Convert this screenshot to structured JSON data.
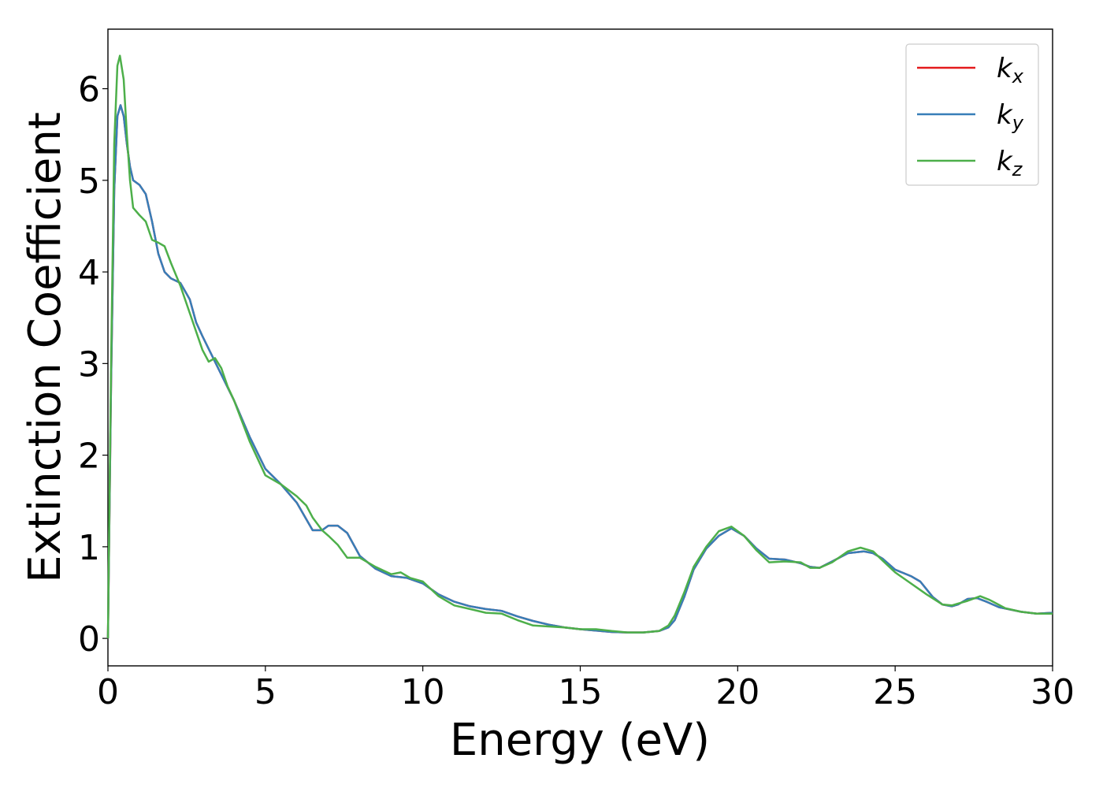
{
  "chart_data": {
    "type": "line",
    "title": "",
    "xlabel": "Energy (eV)",
    "ylabel": "Extinction Coefficient",
    "xlim": [
      0,
      30
    ],
    "ylim": [
      -0.3,
      6.65
    ],
    "xticks": [
      0,
      5,
      10,
      15,
      20,
      25,
      30
    ],
    "xtick_labels": [
      "0",
      "5",
      "10",
      "15",
      "20",
      "25",
      "30"
    ],
    "yticks": [
      0,
      1,
      2,
      3,
      4,
      5,
      6
    ],
    "ytick_labels": [
      "0",
      "1",
      "2",
      "3",
      "4",
      "5",
      "6"
    ],
    "grid": false,
    "legend_position": "top-right",
    "series": [
      {
        "name": "kx",
        "legend_base": "k",
        "legend_sub": "x",
        "color": "#e41a1c",
        "points": [
          [
            0,
            0
          ],
          [
            0.1,
            2.8
          ],
          [
            0.2,
            4.9
          ],
          [
            0.3,
            5.7
          ],
          [
            0.4,
            5.82
          ],
          [
            0.5,
            5.7
          ],
          [
            0.6,
            5.4
          ],
          [
            0.7,
            5.15
          ],
          [
            0.8,
            5.0
          ],
          [
            1.0,
            4.95
          ],
          [
            1.2,
            4.85
          ],
          [
            1.4,
            4.55
          ],
          [
            1.6,
            4.2
          ],
          [
            1.8,
            4.0
          ],
          [
            2.0,
            3.93
          ],
          [
            2.3,
            3.88
          ],
          [
            2.6,
            3.7
          ],
          [
            2.8,
            3.45
          ],
          [
            3.0,
            3.3
          ],
          [
            3.5,
            2.95
          ],
          [
            4.0,
            2.6
          ],
          [
            4.5,
            2.2
          ],
          [
            5.0,
            1.85
          ],
          [
            5.5,
            1.68
          ],
          [
            6.0,
            1.48
          ],
          [
            6.3,
            1.3
          ],
          [
            6.5,
            1.18
          ],
          [
            6.8,
            1.18
          ],
          [
            7.0,
            1.23
          ],
          [
            7.3,
            1.23
          ],
          [
            7.6,
            1.15
          ],
          [
            8.0,
            0.9
          ],
          [
            8.5,
            0.76
          ],
          [
            9.0,
            0.68
          ],
          [
            9.5,
            0.66
          ],
          [
            10.0,
            0.6
          ],
          [
            10.5,
            0.48
          ],
          [
            11.0,
            0.4
          ],
          [
            11.5,
            0.35
          ],
          [
            12.0,
            0.32
          ],
          [
            12.5,
            0.3
          ],
          [
            13.0,
            0.24
          ],
          [
            13.5,
            0.19
          ],
          [
            14.0,
            0.15
          ],
          [
            14.5,
            0.12
          ],
          [
            15.0,
            0.1
          ],
          [
            15.5,
            0.085
          ],
          [
            16.0,
            0.07
          ],
          [
            16.5,
            0.065
          ],
          [
            17.0,
            0.065
          ],
          [
            17.5,
            0.08
          ],
          [
            17.8,
            0.12
          ],
          [
            18.0,
            0.2
          ],
          [
            18.3,
            0.45
          ],
          [
            18.6,
            0.75
          ],
          [
            19.0,
            0.98
          ],
          [
            19.4,
            1.12
          ],
          [
            19.8,
            1.2
          ],
          [
            20.2,
            1.12
          ],
          [
            20.6,
            0.98
          ],
          [
            21.0,
            0.87
          ],
          [
            21.5,
            0.86
          ],
          [
            22.0,
            0.82
          ],
          [
            22.3,
            0.78
          ],
          [
            22.6,
            0.77
          ],
          [
            23.0,
            0.84
          ],
          [
            23.5,
            0.93
          ],
          [
            24.0,
            0.95
          ],
          [
            24.3,
            0.93
          ],
          [
            24.6,
            0.87
          ],
          [
            25.0,
            0.75
          ],
          [
            25.5,
            0.68
          ],
          [
            25.8,
            0.62
          ],
          [
            26.2,
            0.45
          ],
          [
            26.5,
            0.37
          ],
          [
            26.8,
            0.35
          ],
          [
            27.0,
            0.37
          ],
          [
            27.3,
            0.43
          ],
          [
            27.6,
            0.44
          ],
          [
            27.9,
            0.4
          ],
          [
            28.3,
            0.34
          ],
          [
            29.0,
            0.29
          ],
          [
            29.5,
            0.27
          ],
          [
            30.0,
            0.28
          ]
        ]
      },
      {
        "name": "ky",
        "legend_base": "k",
        "legend_sub": "y",
        "color": "#377eb8",
        "points": [
          [
            0,
            0
          ],
          [
            0.1,
            2.8
          ],
          [
            0.2,
            4.9
          ],
          [
            0.3,
            5.7
          ],
          [
            0.4,
            5.82
          ],
          [
            0.5,
            5.7
          ],
          [
            0.6,
            5.4
          ],
          [
            0.7,
            5.15
          ],
          [
            0.8,
            5.0
          ],
          [
            1.0,
            4.95
          ],
          [
            1.2,
            4.85
          ],
          [
            1.4,
            4.55
          ],
          [
            1.6,
            4.2
          ],
          [
            1.8,
            4.0
          ],
          [
            2.0,
            3.93
          ],
          [
            2.3,
            3.88
          ],
          [
            2.6,
            3.7
          ],
          [
            2.8,
            3.45
          ],
          [
            3.0,
            3.3
          ],
          [
            3.5,
            2.95
          ],
          [
            4.0,
            2.6
          ],
          [
            4.5,
            2.2
          ],
          [
            5.0,
            1.85
          ],
          [
            5.5,
            1.68
          ],
          [
            6.0,
            1.48
          ],
          [
            6.3,
            1.3
          ],
          [
            6.5,
            1.18
          ],
          [
            6.8,
            1.18
          ],
          [
            7.0,
            1.23
          ],
          [
            7.3,
            1.23
          ],
          [
            7.6,
            1.15
          ],
          [
            8.0,
            0.9
          ],
          [
            8.5,
            0.76
          ],
          [
            9.0,
            0.68
          ],
          [
            9.5,
            0.66
          ],
          [
            10.0,
            0.6
          ],
          [
            10.5,
            0.48
          ],
          [
            11.0,
            0.4
          ],
          [
            11.5,
            0.35
          ],
          [
            12.0,
            0.32
          ],
          [
            12.5,
            0.3
          ],
          [
            13.0,
            0.24
          ],
          [
            13.5,
            0.19
          ],
          [
            14.0,
            0.15
          ],
          [
            14.5,
            0.12
          ],
          [
            15.0,
            0.1
          ],
          [
            15.5,
            0.085
          ],
          [
            16.0,
            0.07
          ],
          [
            16.5,
            0.065
          ],
          [
            17.0,
            0.065
          ],
          [
            17.5,
            0.08
          ],
          [
            17.8,
            0.12
          ],
          [
            18.0,
            0.2
          ],
          [
            18.3,
            0.45
          ],
          [
            18.6,
            0.75
          ],
          [
            19.0,
            0.98
          ],
          [
            19.4,
            1.12
          ],
          [
            19.8,
            1.2
          ],
          [
            20.2,
            1.12
          ],
          [
            20.6,
            0.98
          ],
          [
            21.0,
            0.87
          ],
          [
            21.5,
            0.86
          ],
          [
            22.0,
            0.82
          ],
          [
            22.3,
            0.78
          ],
          [
            22.6,
            0.77
          ],
          [
            23.0,
            0.84
          ],
          [
            23.5,
            0.93
          ],
          [
            24.0,
            0.95
          ],
          [
            24.3,
            0.93
          ],
          [
            24.6,
            0.87
          ],
          [
            25.0,
            0.75
          ],
          [
            25.5,
            0.68
          ],
          [
            25.8,
            0.62
          ],
          [
            26.2,
            0.45
          ],
          [
            26.5,
            0.37
          ],
          [
            26.8,
            0.35
          ],
          [
            27.0,
            0.37
          ],
          [
            27.3,
            0.43
          ],
          [
            27.6,
            0.44
          ],
          [
            27.9,
            0.4
          ],
          [
            28.3,
            0.34
          ],
          [
            29.0,
            0.29
          ],
          [
            29.5,
            0.27
          ],
          [
            30.0,
            0.28
          ]
        ]
      },
      {
        "name": "kz",
        "legend_base": "k",
        "legend_sub": "z",
        "color": "#4daf4a",
        "points": [
          [
            0,
            0
          ],
          [
            0.1,
            3.0
          ],
          [
            0.2,
            5.4
          ],
          [
            0.3,
            6.25
          ],
          [
            0.38,
            6.36
          ],
          [
            0.5,
            6.1
          ],
          [
            0.6,
            5.5
          ],
          [
            0.7,
            5.0
          ],
          [
            0.8,
            4.7
          ],
          [
            1.0,
            4.62
          ],
          [
            1.2,
            4.55
          ],
          [
            1.4,
            4.35
          ],
          [
            1.6,
            4.32
          ],
          [
            1.8,
            4.28
          ],
          [
            2.0,
            4.1
          ],
          [
            2.3,
            3.85
          ],
          [
            2.6,
            3.55
          ],
          [
            2.8,
            3.35
          ],
          [
            3.0,
            3.15
          ],
          [
            3.2,
            3.02
          ],
          [
            3.4,
            3.06
          ],
          [
            3.6,
            2.95
          ],
          [
            3.8,
            2.75
          ],
          [
            4.0,
            2.6
          ],
          [
            4.5,
            2.15
          ],
          [
            5.0,
            1.78
          ],
          [
            5.5,
            1.68
          ],
          [
            6.0,
            1.55
          ],
          [
            6.3,
            1.45
          ],
          [
            6.5,
            1.32
          ],
          [
            6.8,
            1.18
          ],
          [
            7.0,
            1.12
          ],
          [
            7.3,
            1.02
          ],
          [
            7.6,
            0.88
          ],
          [
            8.0,
            0.88
          ],
          [
            8.5,
            0.78
          ],
          [
            9.0,
            0.7
          ],
          [
            9.3,
            0.72
          ],
          [
            9.6,
            0.66
          ],
          [
            10.0,
            0.62
          ],
          [
            10.5,
            0.46
          ],
          [
            11.0,
            0.36
          ],
          [
            11.5,
            0.32
          ],
          [
            12.0,
            0.28
          ],
          [
            12.5,
            0.27
          ],
          [
            13.0,
            0.2
          ],
          [
            13.5,
            0.14
          ],
          [
            14.0,
            0.13
          ],
          [
            14.5,
            0.12
          ],
          [
            15.0,
            0.1
          ],
          [
            15.5,
            0.1
          ],
          [
            16.0,
            0.08
          ],
          [
            16.5,
            0.065
          ],
          [
            17.0,
            0.065
          ],
          [
            17.5,
            0.08
          ],
          [
            17.8,
            0.14
          ],
          [
            18.0,
            0.25
          ],
          [
            18.3,
            0.5
          ],
          [
            18.6,
            0.78
          ],
          [
            19.0,
            1.0
          ],
          [
            19.4,
            1.17
          ],
          [
            19.8,
            1.22
          ],
          [
            20.2,
            1.12
          ],
          [
            20.6,
            0.96
          ],
          [
            21.0,
            0.83
          ],
          [
            21.5,
            0.84
          ],
          [
            22.0,
            0.83
          ],
          [
            22.3,
            0.77
          ],
          [
            22.6,
            0.77
          ],
          [
            23.0,
            0.83
          ],
          [
            23.5,
            0.95
          ],
          [
            23.9,
            0.99
          ],
          [
            24.3,
            0.95
          ],
          [
            24.6,
            0.85
          ],
          [
            25.0,
            0.72
          ],
          [
            25.5,
            0.6
          ],
          [
            26.0,
            0.48
          ],
          [
            26.5,
            0.37
          ],
          [
            26.8,
            0.36
          ],
          [
            27.0,
            0.38
          ],
          [
            27.3,
            0.41
          ],
          [
            27.7,
            0.46
          ],
          [
            28.0,
            0.42
          ],
          [
            28.5,
            0.33
          ],
          [
            29.0,
            0.29
          ],
          [
            29.5,
            0.27
          ],
          [
            30.0,
            0.27
          ]
        ]
      }
    ]
  }
}
